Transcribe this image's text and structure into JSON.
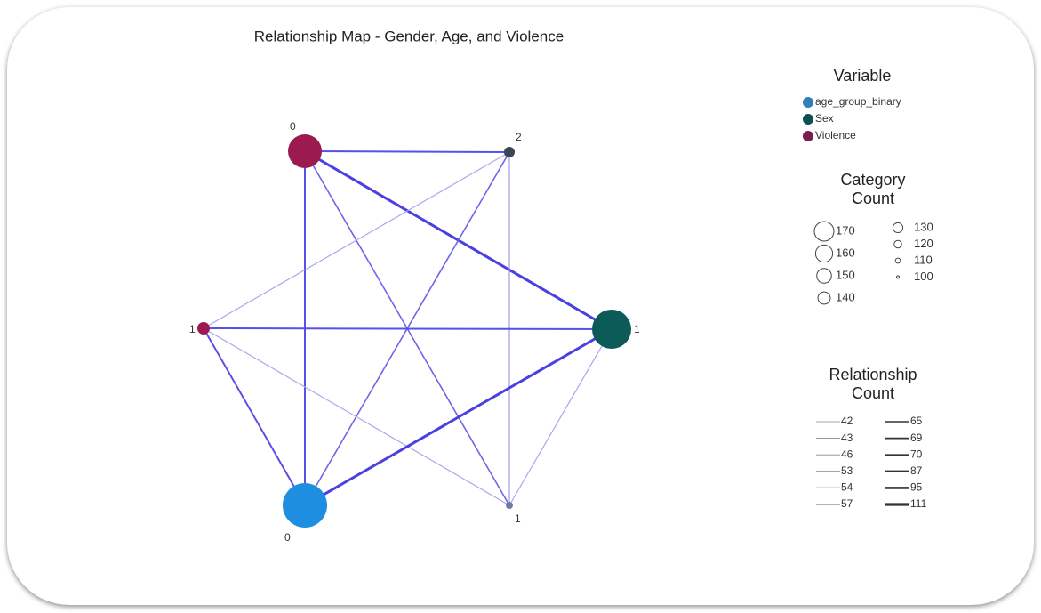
{
  "title": "Relationship Map - Gender, Age, and Violence",
  "nodes": [
    {
      "label": "0"
    },
    {
      "label": "2"
    },
    {
      "label": "1"
    },
    {
      "label": "1"
    },
    {
      "label": "0"
    },
    {
      "label": "1"
    }
  ],
  "legend": {
    "variable_title": "Variable",
    "variables": [
      {
        "label": "age_group_binary",
        "color": "#2f7fb8"
      },
      {
        "label": "Sex",
        "color": "#0d4f50"
      },
      {
        "label": "Violence",
        "color": "#7c1d4e"
      }
    ],
    "category_title": "Category Count",
    "category_counts": [
      170,
      160,
      150,
      140,
      130,
      120,
      110,
      100
    ],
    "relationship_title": "Relationship Count",
    "relationship_counts": [
      42,
      43,
      46,
      53,
      54,
      57,
      65,
      69,
      70,
      87,
      95,
      111
    ]
  }
}
